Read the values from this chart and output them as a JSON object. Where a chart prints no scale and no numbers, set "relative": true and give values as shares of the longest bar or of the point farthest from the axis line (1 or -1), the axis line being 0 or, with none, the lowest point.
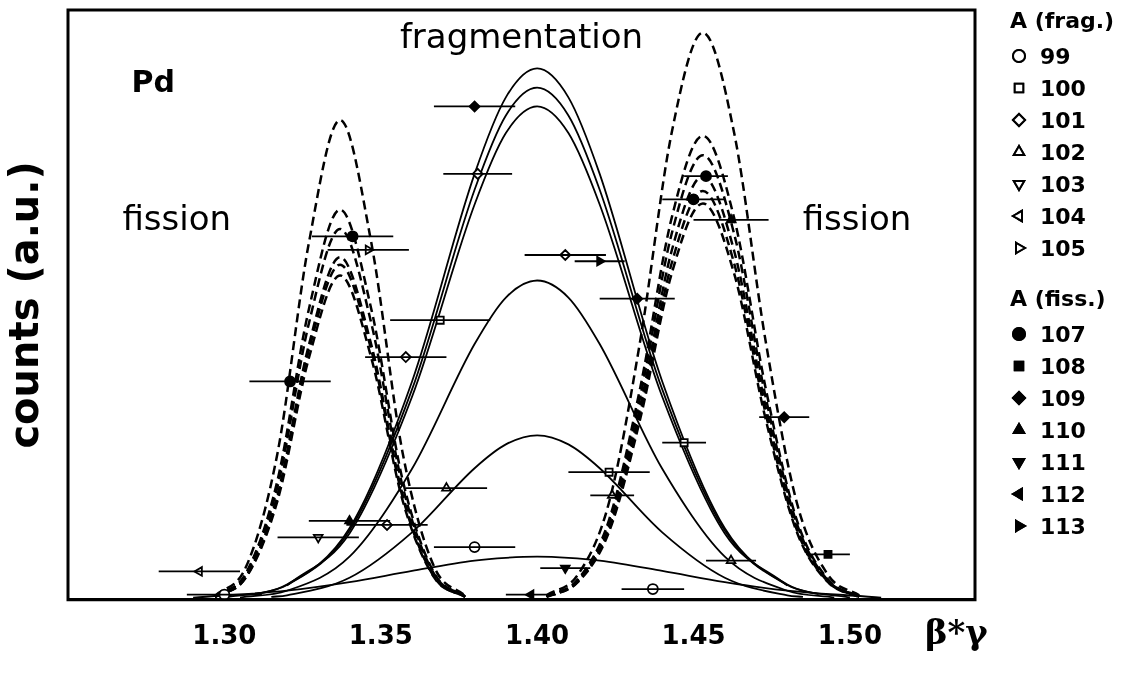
{
  "chart_data": {
    "type": "line",
    "relative": true,
    "xlabel": "β*γ",
    "ylabel": "counts (a.u.)",
    "legend_title": "A (frag.)",
    "legend": "right",
    "grid": false,
    "annotations": [
      "Pd",
      "fragmentation",
      "fission",
      "fission",
      "A (fiss.)"
    ],
    "xlim": [
      1.25,
      1.54
    ],
    "xticks": [
      {
        "value": 1.3,
        "label": "1.30"
      },
      {
        "value": 1.35,
        "label": "1.35"
      },
      {
        "value": 1.4,
        "label": "1.40"
      },
      {
        "value": 1.45,
        "label": "1.45"
      },
      {
        "value": 1.5,
        "label": "1.50"
      }
    ],
    "series": [
      {
        "color": "#000000",
        "line_style": "solid",
        "marker": "none",
        "x": [
          1.3,
          1.32,
          1.34,
          1.36,
          1.38,
          1.39,
          1.4,
          1.41,
          1.42,
          1.44,
          1.46,
          1.48,
          1.5
        ],
        "values": [
          0.004,
          0.027,
          0.126,
          0.385,
          0.751,
          0.886,
          0.937,
          0.886,
          0.751,
          0.385,
          0.126,
          0.027,
          0.004
        ]
      },
      {
        "color": "#000000",
        "line_style": "solid",
        "marker": "none",
        "x": [
          1.31,
          1.32,
          1.34,
          1.36,
          1.38,
          1.39,
          1.4,
          1.41,
          1.42,
          1.44,
          1.46,
          1.48,
          1.49
        ],
        "values": [
          0.01,
          0.026,
          0.122,
          0.371,
          0.723,
          0.854,
          0.903,
          0.854,
          0.723,
          0.371,
          0.122,
          0.026,
          0.01
        ]
      },
      {
        "color": "#000000",
        "line_style": "solid",
        "marker": "none",
        "x": [
          1.32,
          1.34,
          1.36,
          1.38,
          1.39,
          1.4,
          1.41,
          1.42,
          1.44,
          1.46,
          1.48
        ],
        "values": [
          0.025,
          0.117,
          0.358,
          0.697,
          0.823,
          0.87,
          0.823,
          0.697,
          0.358,
          0.117,
          0.025
        ]
      },
      {
        "color": "#000000",
        "line_style": "solid",
        "marker": "none",
        "x": [
          1.305,
          1.32,
          1.34,
          1.36,
          1.38,
          1.39,
          1.4,
          1.41,
          1.42,
          1.44,
          1.46,
          1.48,
          1.495
        ],
        "values": [
          0.004,
          0.016,
          0.076,
          0.231,
          0.451,
          0.533,
          0.563,
          0.533,
          0.451,
          0.231,
          0.076,
          0.016,
          0.004
        ]
      },
      {
        "color": "#000000",
        "line_style": "solid",
        "marker": "none",
        "x": [
          1.315,
          1.32,
          1.34,
          1.36,
          1.38,
          1.39,
          1.4,
          1.41,
          1.42,
          1.44,
          1.46,
          1.48,
          1.485
        ],
        "values": [
          0.005,
          0.008,
          0.039,
          0.119,
          0.232,
          0.274,
          0.29,
          0.274,
          0.232,
          0.119,
          0.039,
          0.008,
          0.005
        ]
      },
      {
        "color": "#000000",
        "line_style": "solid",
        "marker": "none",
        "x": [
          1.29,
          1.32,
          1.34,
          1.36,
          1.38,
          1.39,
          1.4,
          1.41,
          1.42,
          1.44,
          1.46,
          1.48,
          1.51
        ],
        "values": [
          0.004,
          0.016,
          0.031,
          0.051,
          0.069,
          0.074,
          0.076,
          0.074,
          0.069,
          0.051,
          0.031,
          0.016,
          0.004
        ]
      },
      {
        "color": "#000000",
        "line_style": "dashed",
        "marker": "none",
        "x": [
          1.297,
          1.307,
          1.317,
          1.327,
          1.337,
          1.347,
          1.357,
          1.367,
          1.377
        ],
        "values": [
          0.007,
          0.059,
          0.259,
          0.629,
          0.846,
          0.629,
          0.259,
          0.059,
          0.007
        ]
      },
      {
        "color": "#000000",
        "line_style": "dashed",
        "marker": "none",
        "x": [
          1.297,
          1.307,
          1.317,
          1.327,
          1.337,
          1.347,
          1.357,
          1.367,
          1.377
        ],
        "values": [
          0.006,
          0.048,
          0.211,
          0.512,
          0.688,
          0.512,
          0.211,
          0.048,
          0.006
        ]
      },
      {
        "color": "#000000",
        "line_style": "dashed",
        "marker": "none",
        "x": [
          1.297,
          1.307,
          1.317,
          1.327,
          1.337,
          1.347,
          1.357,
          1.367,
          1.377
        ],
        "values": [
          0.006,
          0.046,
          0.2,
          0.487,
          0.654,
          0.487,
          0.2,
          0.046,
          0.006
        ]
      },
      {
        "color": "#000000",
        "line_style": "dashed",
        "marker": "none",
        "x": [
          1.297,
          1.307,
          1.317,
          1.327,
          1.337,
          1.347,
          1.357,
          1.367,
          1.377
        ],
        "values": [
          0.005,
          0.042,
          0.185,
          0.449,
          0.604,
          0.449,
          0.185,
          0.042,
          0.005
        ]
      },
      {
        "color": "#000000",
        "line_style": "dashed",
        "marker": "none",
        "x": [
          1.297,
          1.307,
          1.317,
          1.327,
          1.337,
          1.347,
          1.357,
          1.367,
          1.377
        ],
        "values": [
          0.005,
          0.041,
          0.181,
          0.44,
          0.591,
          0.44,
          0.181,
          0.041,
          0.005
        ]
      },
      {
        "color": "#000000",
        "line_style": "dashed",
        "marker": "none",
        "x": [
          1.297,
          1.307,
          1.317,
          1.327,
          1.337,
          1.347,
          1.357,
          1.367,
          1.377
        ],
        "values": [
          0.005,
          0.04,
          0.175,
          0.426,
          0.572,
          0.426,
          0.175,
          0.04,
          0.005
        ]
      },
      {
        "color": "#000000",
        "line_style": "dashed",
        "marker": "none",
        "x": [
          1.403,
          1.413,
          1.423,
          1.433,
          1.443,
          1.453,
          1.463,
          1.473,
          1.483,
          1.493,
          1.503
        ],
        "values": [
          0.008,
          0.044,
          0.172,
          0.458,
          0.823,
          1,
          0.823,
          0.458,
          0.172,
          0.044,
          0.008
        ]
      },
      {
        "color": "#000000",
        "line_style": "dashed",
        "marker": "none",
        "x": [
          1.403,
          1.413,
          1.423,
          1.433,
          1.443,
          1.453,
          1.463,
          1.473,
          1.483,
          1.493,
          1.503
        ],
        "values": [
          0.006,
          0.036,
          0.141,
          0.375,
          0.673,
          0.818,
          0.673,
          0.375,
          0.141,
          0.036,
          0.006
        ]
      },
      {
        "color": "#000000",
        "line_style": "dashed",
        "marker": "none",
        "x": [
          1.403,
          1.413,
          1.423,
          1.433,
          1.443,
          1.453,
          1.463,
          1.473,
          1.483,
          1.493,
          1.503
        ],
        "values": [
          0.006,
          0.034,
          0.135,
          0.359,
          0.645,
          0.784,
          0.645,
          0.359,
          0.135,
          0.034,
          0.006
        ]
      },
      {
        "color": "#000000",
        "line_style": "dashed",
        "marker": "none",
        "x": [
          1.403,
          1.413,
          1.423,
          1.433,
          1.443,
          1.453,
          1.463,
          1.473,
          1.483,
          1.493,
          1.503
        ],
        "values": [
          0.006,
          0.033,
          0.128,
          0.342,
          0.615,
          0.747,
          0.615,
          0.342,
          0.128,
          0.033,
          0.006
        ]
      },
      {
        "color": "#000000",
        "line_style": "dashed",
        "marker": "none",
        "x": [
          1.403,
          1.413,
          1.423,
          1.433,
          1.443,
          1.453,
          1.463,
          1.473,
          1.483,
          1.493,
          1.503
        ],
        "values": [
          0.005,
          0.032,
          0.124,
          0.33,
          0.593,
          0.721,
          0.593,
          0.33,
          0.124,
          0.032,
          0.005
        ]
      },
      {
        "color": "#000000",
        "line_style": "dashed",
        "marker": "none",
        "x": [
          1.403,
          1.413,
          1.423,
          1.433,
          1.443,
          1.453,
          1.463,
          1.473,
          1.483,
          1.493,
          1.503
        ],
        "values": [
          0.005,
          0.031,
          0.12,
          0.32,
          0.575,
          0.699,
          0.575,
          0.32,
          0.12,
          0.031,
          0.005
        ]
      },
      {
        "type": "scatter",
        "name": "99",
        "color": "#000000",
        "marker": "circle-open",
        "x": [
          1.3,
          1.38,
          1.437
        ],
        "values": [
          0.009,
          0.093,
          0.019
        ],
        "xerrors": [
          0.012,
          0.013,
          0.01
        ]
      },
      {
        "type": "scatter",
        "name": "100",
        "color": "#000000",
        "marker": "square-open",
        "x": [
          1.369,
          1.423,
          1.447
        ],
        "values": [
          0.493,
          0.225,
          0.277
        ],
        "xerrors": [
          0.016,
          0.013,
          0.007
        ]
      },
      {
        "type": "scatter",
        "name": "101",
        "color": "#000000",
        "marker": "diamond-open",
        "x": [
          1.352,
          1.358,
          1.381,
          1.409
        ],
        "values": [
          0.132,
          0.428,
          0.751,
          0.608
        ],
        "xerrors": [
          0.013,
          0.013,
          0.011,
          0.013
        ]
      },
      {
        "type": "scatter",
        "name": "102",
        "color": "#000000",
        "marker": "triangle-open",
        "x": [
          1.371,
          1.424,
          1.462
        ],
        "values": [
          0.197,
          0.184,
          0.069
        ],
        "xerrors": [
          0.013,
          0.007,
          0.008
        ]
      },
      {
        "type": "scatter",
        "name": "103",
        "color": "#000000",
        "marker": "triangle-down-open",
        "x": [
          1.33
        ],
        "values": [
          0.11
        ],
        "xerrors": [
          0.013
        ]
      },
      {
        "type": "scatter",
        "name": "104",
        "color": "#000000",
        "marker": "triangle-left-open",
        "x": [
          1.292
        ],
        "values": [
          0.05
        ],
        "xerrors": [
          0.013
        ]
      },
      {
        "type": "scatter",
        "name": "105",
        "color": "#000000",
        "marker": "triangle-right-open",
        "x": [
          1.346
        ],
        "values": [
          0.617
        ],
        "xerrors": [
          0.013
        ]
      },
      {
        "type": "scatter",
        "name": "107",
        "color": "#000000",
        "marker": "circle",
        "x": [
          1.321,
          1.341,
          1.45,
          1.454
        ],
        "values": [
          0.385,
          0.641,
          0.706,
          0.747
        ],
        "xerrors": [
          0.013,
          0.013,
          0.01,
          0.007
        ]
      },
      {
        "type": "scatter",
        "name": "108",
        "color": "#000000",
        "marker": "square",
        "x": [
          1.493
        ],
        "values": [
          0.08
        ],
        "xerrors": [
          0.007
        ]
      },
      {
        "type": "scatter",
        "name": "109",
        "color": "#000000",
        "marker": "diamond",
        "x": [
          1.38,
          1.432,
          1.479
        ],
        "values": [
          0.87,
          0.531,
          0.322
        ],
        "xerrors": [
          0.013,
          0.012,
          0.008
        ]
      },
      {
        "type": "scatter",
        "name": "110",
        "color": "#000000",
        "marker": "triangle",
        "x": [
          1.34,
          1.462
        ],
        "values": [
          0.139,
          0.67
        ],
        "xerrors": [
          0.013,
          0.012
        ]
      },
      {
        "type": "scatter",
        "name": "111",
        "color": "#000000",
        "marker": "triangle-down",
        "x": [
          1.409
        ],
        "values": [
          0.056
        ],
        "xerrors": [
          0.008
        ]
      },
      {
        "type": "scatter",
        "name": "112",
        "color": "#000000",
        "marker": "triangle-left",
        "x": [
          1.398
        ],
        "values": [
          0.009
        ],
        "xerrors": [
          0.008
        ]
      },
      {
        "type": "scatter",
        "name": "113",
        "color": "#000000",
        "marker": "triangle-right",
        "x": [
          1.42
        ],
        "values": [
          0.597
        ],
        "xerrors": [
          0.008
        ]
      }
    ]
  }
}
